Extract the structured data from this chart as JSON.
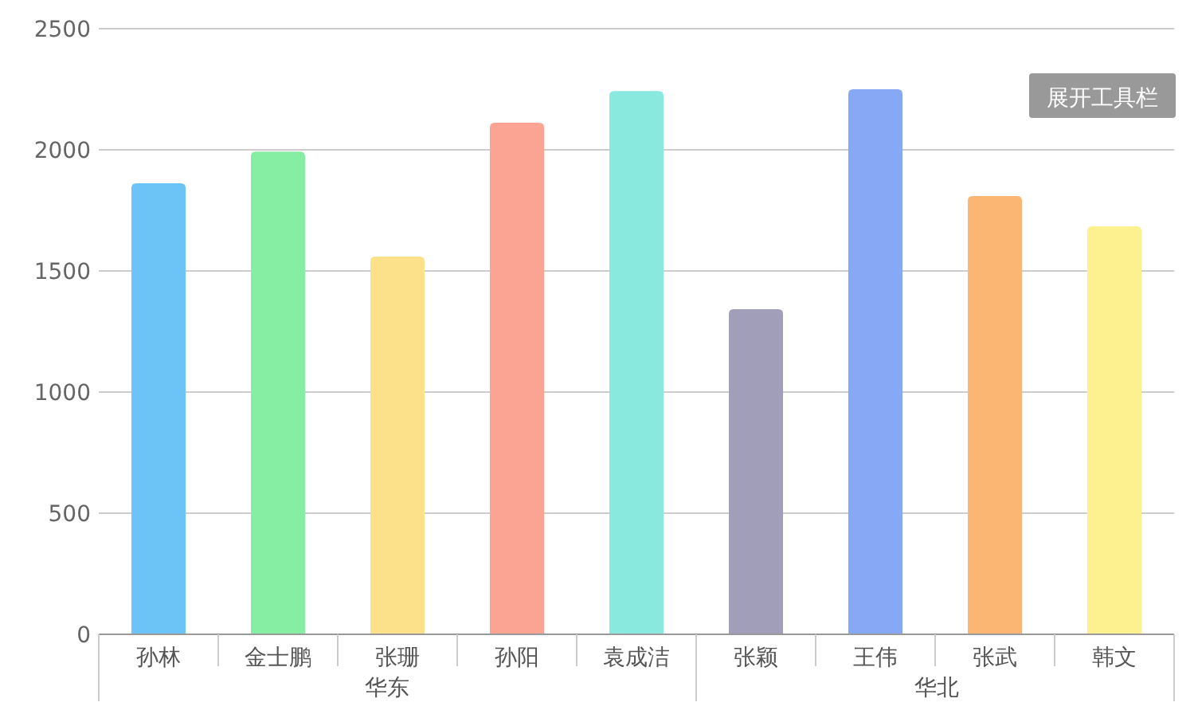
{
  "chart_data": {
    "type": "bar",
    "categories": [
      "孙林",
      "金士鹏",
      "张珊",
      "孙阳",
      "袁成洁",
      "张颖",
      "王伟",
      "张武",
      "韩文"
    ],
    "values": [
      1862,
      1993,
      1559,
      2112,
      2243,
      1342,
      2250,
      1809,
      1684
    ],
    "colors": [
      "#6cc3f5",
      "#86eea3",
      "#fde08a",
      "#fba494",
      "#8ae9de",
      "#a09eb8",
      "#87a8f5",
      "#fbb674",
      "#fdf08f"
    ],
    "ylim": [
      0,
      2500
    ],
    "yticks": [
      0,
      500,
      1000,
      1500,
      2000,
      2500
    ],
    "grid": "y",
    "annotations": [
      "华东",
      "华北",
      "展开工具栏"
    ]
  }
}
